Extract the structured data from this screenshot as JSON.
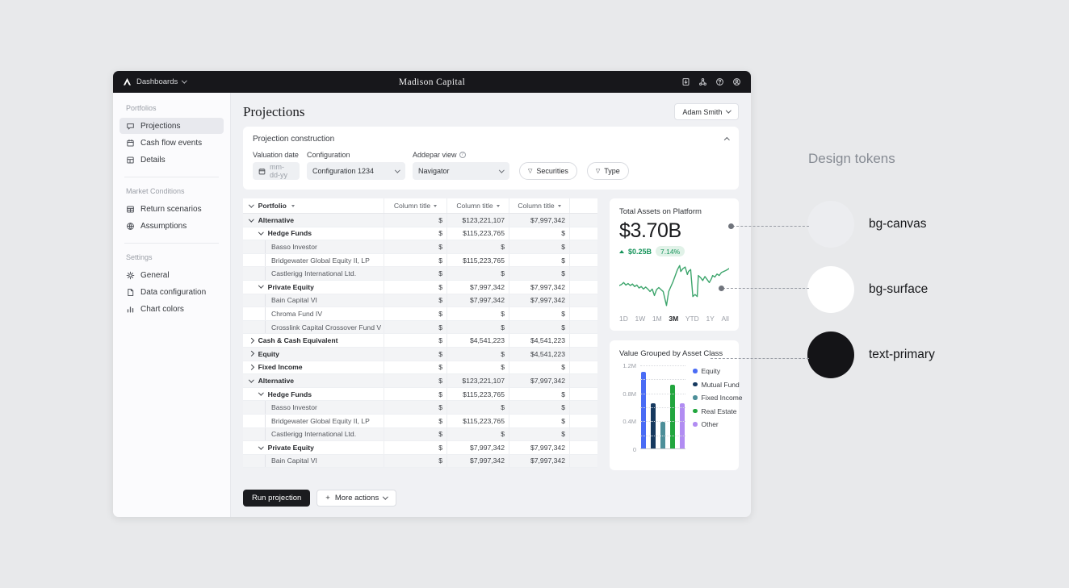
{
  "topbar": {
    "brand": "Dashboards",
    "title": "Madison Capital",
    "icons": [
      "export-icon",
      "integrations-icon",
      "help-icon",
      "account-icon"
    ]
  },
  "sidebar": {
    "sections": [
      {
        "label": "Portfolios",
        "items": [
          {
            "label": "Projections",
            "icon": "projections-icon",
            "active": true
          },
          {
            "label": "Cash flow events",
            "icon": "calendar-icon",
            "active": false
          },
          {
            "label": "Details",
            "icon": "details-icon",
            "active": false
          }
        ]
      },
      {
        "label": "Market Conditions",
        "items": [
          {
            "label": "Return scenarios",
            "icon": "table-icon",
            "active": false
          },
          {
            "label": "Assumptions",
            "icon": "globe-icon",
            "active": false
          }
        ]
      },
      {
        "label": "Settings",
        "items": [
          {
            "label": "General",
            "icon": "gear-icon",
            "active": false
          },
          {
            "label": "Data configuration",
            "icon": "data-config-icon",
            "active": false
          },
          {
            "label": "Chart colors",
            "icon": "chart-colors-icon",
            "active": false
          }
        ]
      }
    ]
  },
  "main": {
    "title": "Projections",
    "user_button": "Adam Smith",
    "construction": {
      "title": "Projection construction",
      "valuation_label": "Valuation date",
      "date_placeholder": "mm-dd-yy",
      "config_label": "Configuration",
      "config_value": "Configuration 1234",
      "view_label": "Addepar view",
      "view_value": "Navigator",
      "filters": [
        "Securities",
        "Type"
      ]
    },
    "table": {
      "portfolio_header": "Portfolio",
      "column_headers": [
        "Column title",
        "Column title",
        "Column title"
      ],
      "rows": [
        {
          "label": "Alternative",
          "level": 0,
          "expand": "down",
          "values": [
            "$",
            "$123,221,107",
            "$7,997,342"
          ]
        },
        {
          "label": "Hedge Funds",
          "level": 1,
          "expand": "down",
          "values": [
            "$",
            "$115,223,765",
            "$"
          ]
        },
        {
          "label": "Basso Investor",
          "level": 2,
          "expand": null,
          "values": [
            "$",
            "$",
            "$"
          ]
        },
        {
          "label": "Bridgewater Global Equity II, LP",
          "level": 2,
          "expand": null,
          "values": [
            "$",
            "$115,223,765",
            "$"
          ]
        },
        {
          "label": "Castlerigg International Ltd.",
          "level": 2,
          "expand": null,
          "values": [
            "$",
            "$",
            "$"
          ]
        },
        {
          "label": "Private Equity",
          "level": 1,
          "expand": "down",
          "values": [
            "$",
            "$7,997,342",
            "$7,997,342"
          ]
        },
        {
          "label": "Bain Capital VI",
          "level": 2,
          "expand": null,
          "values": [
            "$",
            "$7,997,342",
            "$7,997,342"
          ]
        },
        {
          "label": "Chroma Fund IV",
          "level": 2,
          "expand": null,
          "values": [
            "$",
            "$",
            "$"
          ]
        },
        {
          "label": "Crosslink Capital Crossover Fund V",
          "level": 2,
          "expand": null,
          "values": [
            "$",
            "$",
            "$"
          ]
        },
        {
          "label": "Cash & Cash Equivalent",
          "level": 0,
          "expand": "right",
          "values": [
            "$",
            "$4,541,223",
            "$4,541,223"
          ]
        },
        {
          "label": "Equity",
          "level": 0,
          "expand": "right",
          "values": [
            "$",
            "$",
            "$4,541,223"
          ]
        },
        {
          "label": "Fixed Income",
          "level": 0,
          "expand": "right",
          "values": [
            "$",
            "$",
            "$"
          ]
        },
        {
          "label": "Alternative",
          "level": 0,
          "expand": "down",
          "values": [
            "$",
            "$123,221,107",
            "$7,997,342"
          ]
        },
        {
          "label": "Hedge Funds",
          "level": 1,
          "expand": "down",
          "values": [
            "$",
            "$115,223,765",
            "$"
          ]
        },
        {
          "label": "Basso Investor",
          "level": 2,
          "expand": null,
          "values": [
            "$",
            "$",
            "$"
          ]
        },
        {
          "label": "Bridgewater Global Equity II, LP",
          "level": 2,
          "expand": null,
          "values": [
            "$",
            "$115,223,765",
            "$"
          ]
        },
        {
          "label": "Castlerigg International Ltd.",
          "level": 2,
          "expand": null,
          "values": [
            "$",
            "$",
            "$"
          ]
        },
        {
          "label": "Private Equity",
          "level": 1,
          "expand": "down",
          "values": [
            "$",
            "$7,997,342",
            "$7,997,342"
          ]
        },
        {
          "label": "Bain Capital VI",
          "level": 2,
          "expand": null,
          "values": [
            "$",
            "$7,997,342",
            "$7,997,342"
          ]
        }
      ]
    },
    "footer": {
      "run_label": "Run projection",
      "more_label": "More actions"
    }
  },
  "chart_data": [
    {
      "type": "line",
      "card_title": "Total Assets on Platform",
      "value": "$3.70B",
      "change": "$0.25B",
      "change_direction": "up",
      "change_pct": "7.14%",
      "line_color": "#3da56c",
      "accent_green": "#15935a",
      "ranges": [
        "1D",
        "1W",
        "1M",
        "3M",
        "YTD",
        "1Y",
        "All"
      ],
      "selected_range": "3M",
      "points": [
        [
          0,
          50
        ],
        [
          2,
          48
        ],
        [
          4,
          44
        ],
        [
          6,
          49
        ],
        [
          8,
          46
        ],
        [
          10,
          50
        ],
        [
          12,
          47
        ],
        [
          14,
          52
        ],
        [
          16,
          49
        ],
        [
          18,
          55
        ],
        [
          20,
          52
        ],
        [
          22,
          57
        ],
        [
          24,
          53
        ],
        [
          26,
          57
        ],
        [
          28,
          62
        ],
        [
          30,
          57
        ],
        [
          32,
          70
        ],
        [
          34,
          58
        ],
        [
          36,
          54
        ],
        [
          38,
          58
        ],
        [
          40,
          62
        ],
        [
          43,
          90
        ],
        [
          45,
          62
        ],
        [
          47,
          52
        ],
        [
          49,
          42
        ],
        [
          51,
          30
        ],
        [
          53,
          18
        ],
        [
          55,
          10
        ],
        [
          56,
          22
        ],
        [
          58,
          16
        ],
        [
          60,
          13
        ],
        [
          62,
          28
        ],
        [
          63,
          22
        ],
        [
          65,
          18
        ],
        [
          67,
          72
        ],
        [
          69,
          68
        ],
        [
          71,
          72
        ],
        [
          72,
          30
        ],
        [
          74,
          34
        ],
        [
          76,
          40
        ],
        [
          78,
          32
        ],
        [
          80,
          38
        ],
        [
          82,
          44
        ],
        [
          84,
          36
        ],
        [
          85,
          30
        ],
        [
          87,
          33
        ],
        [
          89,
          27
        ],
        [
          91,
          30
        ],
        [
          93,
          24
        ],
        [
          95,
          22
        ],
        [
          97,
          20
        ],
        [
          100,
          16
        ]
      ]
    },
    {
      "type": "bar",
      "card_title": "Value Grouped by Asset Class",
      "categories": [
        "Equity",
        "Mutual Fund",
        "Fixed Income",
        "Real Estate",
        "Other"
      ],
      "values": [
        1.1,
        0.65,
        0.38,
        0.91,
        0.65
      ],
      "unit": "M",
      "ylim": [
        0,
        1.2
      ],
      "grid_step": 0.2,
      "yticks": [
        {
          "value": 1.2,
          "label": "1.2M"
        },
        {
          "value": 0.8,
          "label": "0.8M"
        },
        {
          "value": 0.4,
          "label": "0.4M"
        },
        {
          "value": 0,
          "label": "0"
        }
      ],
      "colors": [
        "#4a6cf5",
        "#16395f",
        "#4d8f99",
        "#22a63e",
        "#b18cf2"
      ],
      "legend": [
        "Equity",
        "Mutual Fund",
        "Fixed Income",
        "Real Estate",
        "Other"
      ],
      "legend_position": "right"
    }
  ],
  "design_tokens": {
    "title": "Design tokens",
    "items": [
      {
        "name": "bg-canvas",
        "color": "#ecedf0"
      },
      {
        "name": "bg-surface",
        "color": "#ffffff"
      },
      {
        "name": "text-primary",
        "color": "#141417"
      }
    ]
  }
}
